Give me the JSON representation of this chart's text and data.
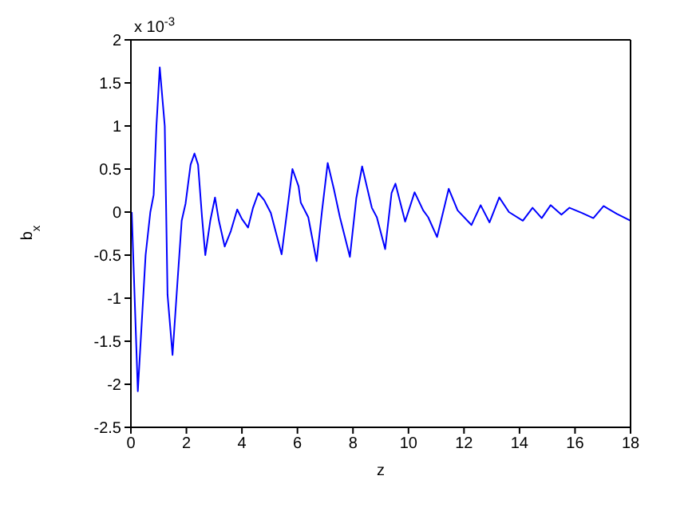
{
  "chart_data": {
    "type": "line",
    "xlabel": "z",
    "ylabel": "b$_{x}$",
    "annotations": [
      "x 10$^{-3}$"
    ],
    "xlim": [
      0,
      18
    ],
    "xticks": [
      0,
      2,
      4,
      6,
      8,
      10,
      12,
      14,
      16,
      18
    ],
    "ylim": [
      -2.5,
      2
    ],
    "yticks": [
      -2.5,
      -2,
      -1.5,
      -1,
      -0.5,
      0,
      0.5,
      1,
      1.5,
      2
    ],
    "grid": false,
    "legend": false,
    "marker": "none",
    "line_style": "solid",
    "series": [
      {
        "color": "#0000ff",
        "x": [
          0.03,
          0.25,
          0.53,
          0.7,
          0.82,
          0.92,
          1.04,
          1.22,
          1.32,
          1.5,
          1.67,
          1.83,
          1.97,
          2.15,
          2.29,
          2.42,
          2.56,
          2.68,
          2.86,
          3.03,
          3.17,
          3.38,
          3.6,
          3.83,
          4.0,
          4.22,
          4.4,
          4.59,
          4.8,
          5.04,
          5.43,
          5.82,
          6.04,
          6.12,
          6.39,
          6.69,
          6.88,
          7.09,
          7.31,
          7.53,
          7.89,
          8.12,
          8.33,
          8.68,
          8.86,
          9.16,
          9.39,
          9.53,
          9.88,
          10.22,
          10.53,
          10.71,
          11.03,
          11.45,
          11.77,
          12.27,
          12.6,
          12.92,
          13.27,
          13.62,
          14.12,
          14.47,
          14.8,
          15.12,
          15.51,
          15.8,
          16.25,
          16.66,
          17.03,
          17.5,
          18.0
        ],
        "values": [
          0,
          -2.08,
          -0.5,
          0,
          0.2,
          1.0,
          1.68,
          1.0,
          -0.96,
          -1.66,
          -0.85,
          -0.1,
          0.1,
          0.55,
          0.68,
          0.55,
          -0.05,
          -0.5,
          -0.1,
          0.17,
          -0.1,
          -0.4,
          -0.22,
          0.03,
          -0.08,
          -0.18,
          0.05,
          0.22,
          0.14,
          -0.01,
          -0.49,
          0.5,
          0.3,
          0.11,
          -0.06,
          -0.57,
          0,
          0.57,
          0.27,
          -0.06,
          -0.52,
          0.16,
          0.53,
          0.05,
          -0.06,
          -0.43,
          0.22,
          0.33,
          -0.11,
          0.23,
          0.02,
          -0.06,
          -0.29,
          0.27,
          0.02,
          -0.15,
          0.08,
          -0.12,
          0.17,
          0.0,
          -0.1,
          0.05,
          -0.07,
          0.08,
          -0.03,
          0.05,
          -0.01,
          -0.07,
          0.07,
          -0.02,
          -0.1
        ]
      }
    ]
  }
}
